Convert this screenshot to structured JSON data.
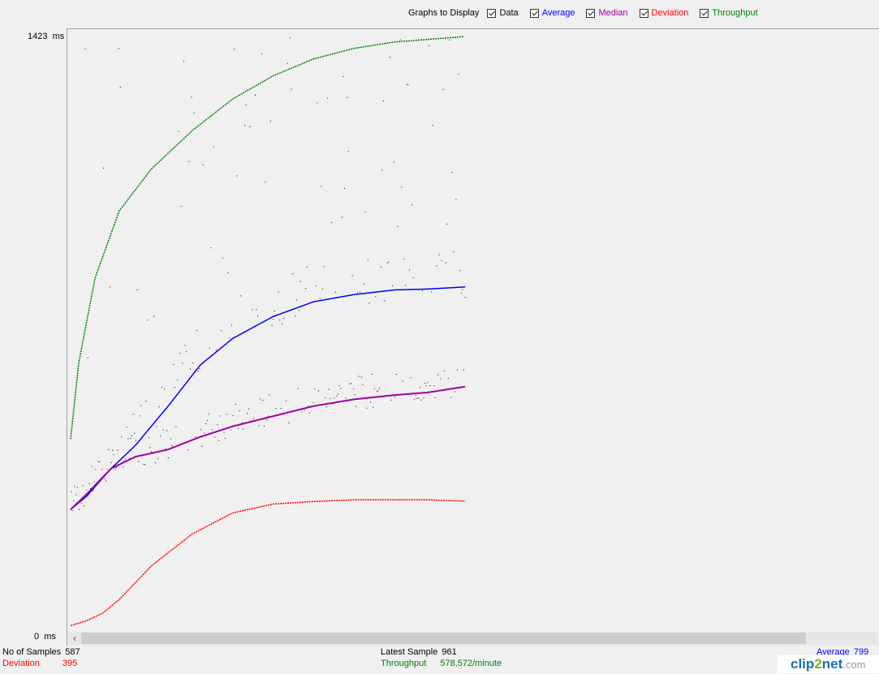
{
  "toolbar": {
    "caption": "Graphs to Display",
    "options": [
      {
        "label": "Data",
        "checked": true,
        "color": "#000000"
      },
      {
        "label": "Average",
        "checked": true,
        "color": "#0000ff"
      },
      {
        "label": "Median",
        "checked": true,
        "color": "#a000a0"
      },
      {
        "label": "Deviation",
        "checked": true,
        "color": "#ff0000"
      },
      {
        "label": "Throughput",
        "checked": true,
        "color": "#008000"
      }
    ]
  },
  "y_axis": {
    "max_label": "1423  ms",
    "min_label": "0  ms"
  },
  "stats": {
    "samples_label": "No of Samples",
    "samples_value": "587",
    "deviation_label": "Deviation",
    "deviation_value": "395",
    "latest_label": "Latest Sample",
    "latest_value": "961",
    "throughput_label": "Throughput",
    "throughput_value": "578,572/minute",
    "average_label": "Average",
    "average_value": "799"
  },
  "watermark": {
    "part1": "clip",
    "part2": "2",
    "part3": "net",
    "part4": ".com"
  },
  "chart_data": {
    "type": "scatter",
    "y_unit": "ms",
    "ylim": [
      0,
      1423
    ],
    "x": "sample index",
    "xlim": [
      0,
      587
    ],
    "series": [
      {
        "name": "Average",
        "color": "#0000ff",
        "points": [
          [
            0,
            303
          ],
          [
            20,
            335
          ],
          [
            50,
            400
          ],
          [
            80,
            455
          ],
          [
            120,
            547
          ],
          [
            160,
            645
          ],
          [
            200,
            708
          ],
          [
            250,
            760
          ],
          [
            300,
            795
          ],
          [
            350,
            812
          ],
          [
            400,
            823
          ],
          [
            440,
            825
          ],
          [
            487,
            830
          ]
        ]
      },
      {
        "name": "Median",
        "color": "#a000a0",
        "points": [
          [
            0,
            303
          ],
          [
            20,
            340
          ],
          [
            50,
            400
          ],
          [
            80,
            428
          ],
          [
            120,
            445
          ],
          [
            160,
            475
          ],
          [
            200,
            500
          ],
          [
            250,
            524
          ],
          [
            300,
            548
          ],
          [
            350,
            564
          ],
          [
            400,
            574
          ],
          [
            440,
            580
          ],
          [
            487,
            594
          ]
        ]
      },
      {
        "name": "Deviation",
        "color": "#ff0000",
        "points": [
          [
            0,
            28
          ],
          [
            20,
            40
          ],
          [
            40,
            58
          ],
          [
            60,
            90
          ],
          [
            100,
            170
          ],
          [
            150,
            245
          ],
          [
            200,
            295
          ],
          [
            250,
            316
          ],
          [
            300,
            322
          ],
          [
            350,
            326
          ],
          [
            400,
            326
          ],
          [
            440,
            326
          ],
          [
            487,
            323
          ]
        ]
      },
      {
        "name": "Throughput",
        "color": "#008000",
        "points": [
          [
            0,
            470
          ],
          [
            10,
            650
          ],
          [
            30,
            850
          ],
          [
            60,
            1010
          ],
          [
            100,
            1110
          ],
          [
            150,
            1200
          ],
          [
            200,
            1275
          ],
          [
            250,
            1330
          ],
          [
            300,
            1370
          ],
          [
            350,
            1395
          ],
          [
            400,
            1410
          ],
          [
            487,
            1423
          ]
        ]
      }
    ],
    "data_note": "Data points scatter between Median and the top of the chart"
  }
}
